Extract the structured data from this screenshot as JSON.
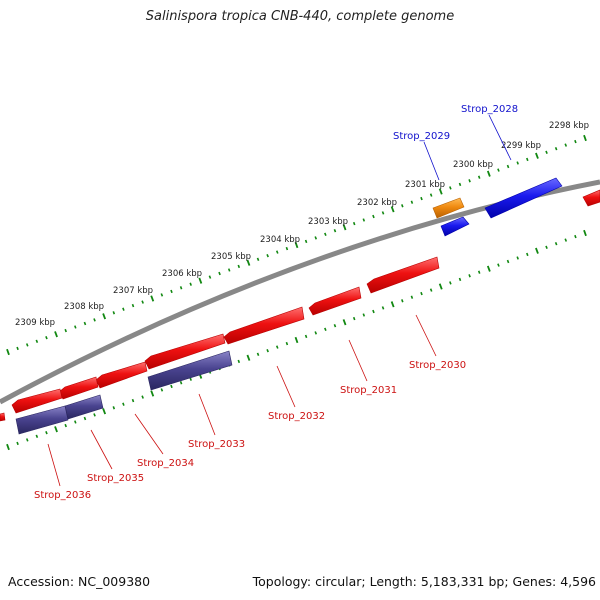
{
  "title": "Salinispora tropica CNB-440, complete genome",
  "accession": "Accession: NC_009380",
  "summary": "Topology: circular; Length: 5,183,331 bp; Genes: 4,596",
  "colors": {
    "forward_cds": "#1a1aee",
    "reverse_cds": "#ee1111",
    "rna": "#f08a10",
    "other": "#4a4490",
    "backbone": "#888888",
    "ticks": "#118811",
    "label_forward": "#1111cc",
    "label_reverse": "#cc1111"
  },
  "ticks": [
    {
      "label": "2298 kbp"
    },
    {
      "label": "2299 kbp"
    },
    {
      "label": "2300 kbp"
    },
    {
      "label": "2301 kbp"
    },
    {
      "label": "2302 kbp"
    },
    {
      "label": "2303 kbp"
    },
    {
      "label": "2304 kbp"
    },
    {
      "label": "2305 kbp"
    },
    {
      "label": "2306 kbp"
    },
    {
      "label": "2307 kbp"
    },
    {
      "label": "2308 kbp"
    },
    {
      "label": "2309 kbp"
    }
  ],
  "genes": [
    {
      "label": "Strop_2028",
      "strand": "forward",
      "type": "cds"
    },
    {
      "label": "Strop_2029",
      "strand": "forward",
      "type": "rna"
    },
    {
      "label": "Strop_2030",
      "strand": "reverse",
      "type": "cds"
    },
    {
      "label": "Strop_2031",
      "strand": "reverse",
      "type": "cds"
    },
    {
      "label": "Strop_2032",
      "strand": "reverse",
      "type": "cds"
    },
    {
      "label": "Strop_2033",
      "strand": "reverse",
      "type": "other"
    },
    {
      "label": "Strop_2034",
      "strand": "reverse",
      "type": "cds"
    },
    {
      "label": "Strop_2035",
      "strand": "reverse",
      "type": "other"
    },
    {
      "label": "Strop_2036",
      "strand": "reverse",
      "type": "cds"
    }
  ]
}
